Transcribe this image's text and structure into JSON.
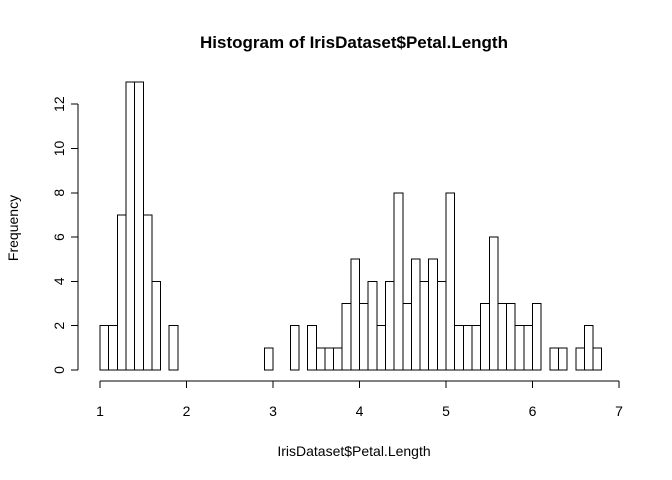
{
  "chart_data": {
    "type": "histogram",
    "title": "Histogram of IrisDataset$Petal.Length",
    "xlabel": "IrisDataset$Petal.Length",
    "ylabel": "Frequency",
    "xlim": [
      1,
      7
    ],
    "ylim": [
      0,
      13
    ],
    "x_ticks": [
      1,
      2,
      3,
      4,
      5,
      6,
      7
    ],
    "y_ticks": [
      0,
      2,
      4,
      6,
      8,
      10,
      12
    ],
    "bin_start": 1.0,
    "bin_width": 0.1,
    "counts": [
      2,
      2,
      7,
      13,
      13,
      7,
      4,
      0,
      2,
      0,
      0,
      0,
      0,
      0,
      0,
      0,
      0,
      0,
      0,
      1,
      0,
      0,
      2,
      0,
      2,
      1,
      1,
      1,
      3,
      5,
      3,
      4,
      2,
      4,
      8,
      3,
      5,
      4,
      5,
      4,
      8,
      2,
      2,
      2,
      3,
      6,
      3,
      3,
      2,
      2,
      3,
      0,
      1,
      1,
      0,
      1,
      2,
      1
    ]
  }
}
